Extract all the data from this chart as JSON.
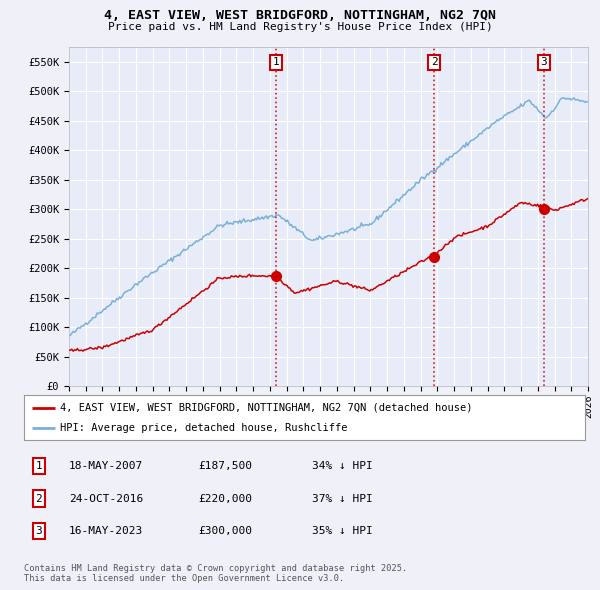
{
  "title": "4, EAST VIEW, WEST BRIDGFORD, NOTTINGHAM, NG2 7QN",
  "subtitle": "Price paid vs. HM Land Registry's House Price Index (HPI)",
  "ylim": [
    0,
    575000
  ],
  "yticks": [
    0,
    50000,
    100000,
    150000,
    200000,
    250000,
    300000,
    350000,
    400000,
    450000,
    500000,
    550000
  ],
  "ytick_labels": [
    "£0",
    "£50K",
    "£100K",
    "£150K",
    "£200K",
    "£250K",
    "£300K",
    "£350K",
    "£400K",
    "£450K",
    "£500K",
    "£550K"
  ],
  "background_color": "#f0f0f8",
  "plot_bg_color": "#e8ecf8",
  "grid_color": "#ffffff",
  "red_line_color": "#cc0000",
  "blue_line_color": "#7ab0d8",
  "dashed_line_color": "#cc0000",
  "transaction1_date": 2007.38,
  "transaction1_price": 187500,
  "transaction2_date": 2016.81,
  "transaction2_price": 220000,
  "transaction3_date": 2023.37,
  "transaction3_price": 300000,
  "legend_line1": "4, EAST VIEW, WEST BRIDGFORD, NOTTINGHAM, NG2 7QN (detached house)",
  "legend_line2": "HPI: Average price, detached house, Rushcliffe",
  "table_entries": [
    {
      "num": "1",
      "date": "18-MAY-2007",
      "price": "£187,500",
      "pct": "34% ↓ HPI"
    },
    {
      "num": "2",
      "date": "24-OCT-2016",
      "price": "£220,000",
      "pct": "37% ↓ HPI"
    },
    {
      "num": "3",
      "date": "16-MAY-2023",
      "price": "£300,000",
      "pct": "35% ↓ HPI"
    }
  ],
  "footer": "Contains HM Land Registry data © Crown copyright and database right 2025.\nThis data is licensed under the Open Government Licence v3.0."
}
